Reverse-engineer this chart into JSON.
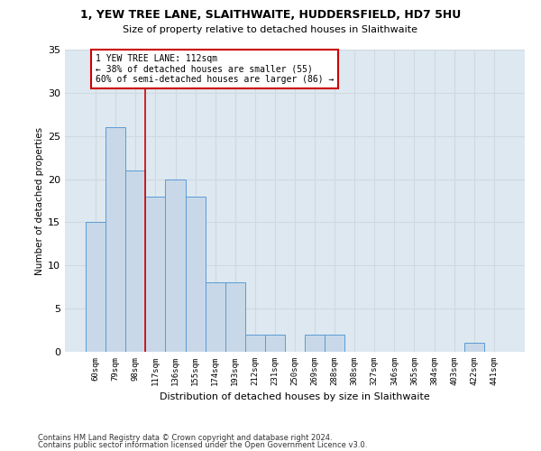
{
  "title": "1, YEW TREE LANE, SLAITHWAITE, HUDDERSFIELD, HD7 5HU",
  "subtitle": "Size of property relative to detached houses in Slaithwaite",
  "xlabel": "Distribution of detached houses by size in Slaithwaite",
  "ylabel": "Number of detached properties",
  "categories": [
    "60sqm",
    "79sqm",
    "98sqm",
    "117sqm",
    "136sqm",
    "155sqm",
    "174sqm",
    "193sqm",
    "212sqm",
    "231sqm",
    "250sqm",
    "269sqm",
    "288sqm",
    "308sqm",
    "327sqm",
    "346sqm",
    "365sqm",
    "384sqm",
    "403sqm",
    "422sqm",
    "441sqm"
  ],
  "values": [
    15,
    26,
    21,
    18,
    20,
    18,
    8,
    8,
    2,
    2,
    0,
    2,
    2,
    0,
    0,
    0,
    0,
    0,
    0,
    1,
    0
  ],
  "bar_color": "#c8d8e8",
  "bar_edge_color": "#5b9bd5",
  "grid_color": "#d0d8e0",
  "background_color": "#dde8f0",
  "annotation_text_line1": "1 YEW TREE LANE: 112sqm",
  "annotation_text_line2": "← 38% of detached houses are smaller (55)",
  "annotation_text_line3": "60% of semi-detached houses are larger (86) →",
  "annotation_box_color": "#ffffff",
  "annotation_box_edge_color": "#cc0000",
  "vline_color": "#cc0000",
  "vline_x": 2.5,
  "ylim": [
    0,
    35
  ],
  "yticks": [
    0,
    5,
    10,
    15,
    20,
    25,
    30,
    35
  ],
  "footnote1": "Contains HM Land Registry data © Crown copyright and database right 2024.",
  "footnote2": "Contains public sector information licensed under the Open Government Licence v3.0."
}
